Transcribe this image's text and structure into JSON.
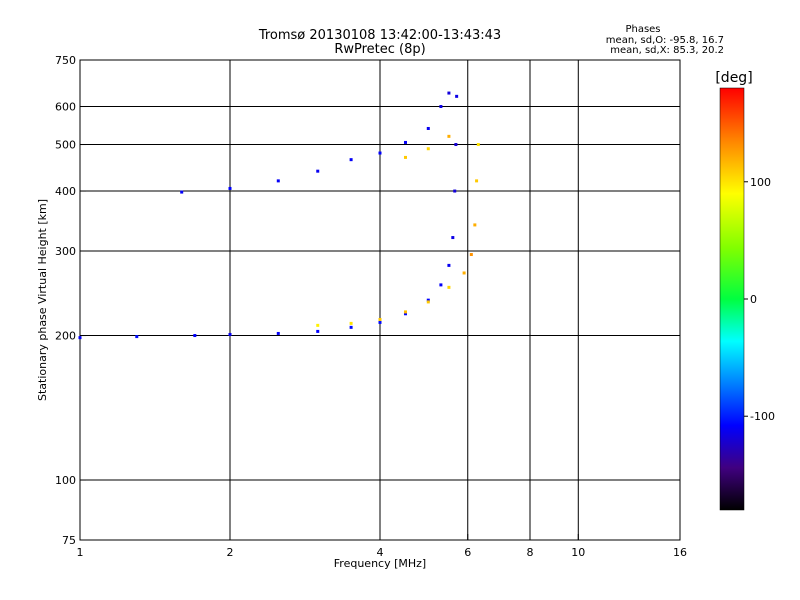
{
  "chart_data": {
    "type": "scatter",
    "title": "Tromsø 20130108 13:42:00-13:43:43",
    "subtitle": "RwPretec (8p)",
    "xlabel": "Frequency [MHz]",
    "ylabel": "Stationary phase Virtual Height [km]",
    "x_scale": "log",
    "y_scale": "log",
    "xlim": [
      1,
      16
    ],
    "ylim": [
      75,
      750
    ],
    "x_ticks": [
      1,
      2,
      4,
      6,
      8,
      10,
      16
    ],
    "y_ticks": [
      75,
      100,
      200,
      300,
      400,
      500,
      600,
      750
    ],
    "grid": true,
    "phases": {
      "title": "Phases",
      "line_o": "mean, sd,O: -95.8, 16.7",
      "line_x": "mean, sd,X:  85.3, 20.2"
    },
    "colorbar": {
      "label": "[deg]",
      "min": -180,
      "max": 180,
      "ticks": [
        100,
        0,
        -100
      ]
    },
    "traces": [
      {
        "x": 1.0,
        "y": 198,
        "c": -110
      },
      {
        "x": 1.3,
        "y": 199,
        "c": -105
      },
      {
        "x": 1.7,
        "y": 200,
        "c": -108
      },
      {
        "x": 2.0,
        "y": 201,
        "c": -112
      },
      {
        "x": 2.5,
        "y": 202,
        "c": -110
      },
      {
        "x": 3.0,
        "y": 204,
        "c": -108
      },
      {
        "x": 3.5,
        "y": 208,
        "c": -106
      },
      {
        "x": 4.0,
        "y": 213,
        "c": -105
      },
      {
        "x": 4.5,
        "y": 222,
        "c": -106
      },
      {
        "x": 5.0,
        "y": 237,
        "c": -108
      },
      {
        "x": 5.3,
        "y": 255,
        "c": -110
      },
      {
        "x": 5.5,
        "y": 280,
        "c": -112
      },
      {
        "x": 5.6,
        "y": 320,
        "c": -115
      },
      {
        "x": 5.65,
        "y": 400,
        "c": -118
      },
      {
        "x": 5.68,
        "y": 500,
        "c": -120
      },
      {
        "x": 5.7,
        "y": 630,
        "c": -115
      },
      {
        "x": 3.0,
        "y": 210,
        "c": 95
      },
      {
        "x": 3.5,
        "y": 212,
        "c": 100
      },
      {
        "x": 4.0,
        "y": 216,
        "c": 110
      },
      {
        "x": 4.5,
        "y": 224,
        "c": 115
      },
      {
        "x": 5.0,
        "y": 235,
        "c": 110
      },
      {
        "x": 5.5,
        "y": 252,
        "c": 105
      },
      {
        "x": 5.9,
        "y": 270,
        "c": 120
      },
      {
        "x": 6.1,
        "y": 295,
        "c": 130
      },
      {
        "x": 6.2,
        "y": 340,
        "c": 120
      },
      {
        "x": 6.25,
        "y": 420,
        "c": 110
      },
      {
        "x": 6.3,
        "y": 500,
        "c": 100
      },
      {
        "x": 1.6,
        "y": 398,
        "c": -110
      },
      {
        "x": 2.0,
        "y": 405,
        "c": -108
      },
      {
        "x": 2.5,
        "y": 420,
        "c": -110
      },
      {
        "x": 3.0,
        "y": 440,
        "c": -112
      },
      {
        "x": 3.5,
        "y": 465,
        "c": -110
      },
      {
        "x": 4.0,
        "y": 480,
        "c": -108
      },
      {
        "x": 4.5,
        "y": 505,
        "c": -110
      },
      {
        "x": 5.0,
        "y": 540,
        "c": -112
      },
      {
        "x": 5.3,
        "y": 600,
        "c": -115
      },
      {
        "x": 5.5,
        "y": 640,
        "c": -118
      },
      {
        "x": 4.5,
        "y": 470,
        "c": 110
      },
      {
        "x": 5.0,
        "y": 490,
        "c": 105
      },
      {
        "x": 5.5,
        "y": 520,
        "c": 120
      }
    ]
  }
}
